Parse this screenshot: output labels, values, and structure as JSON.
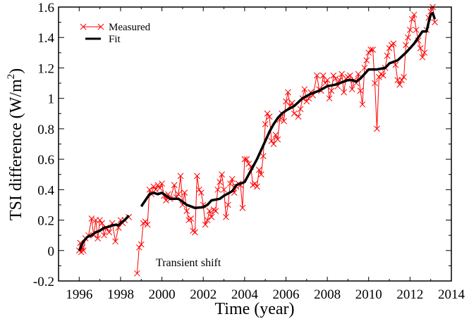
{
  "chart_data": {
    "type": "line",
    "title": "",
    "xlabel": "Time (year)",
    "ylabel": "TSI difference (W/m",
    "ylabel_sup": "2",
    "ylabel_close": ")",
    "xlim": [
      1995,
      2014
    ],
    "ylim": [
      -0.2,
      1.6
    ],
    "xticks": [
      1996,
      1998,
      2000,
      2002,
      2004,
      2006,
      2008,
      2010,
      2012,
      2014
    ],
    "xtick_labels": [
      "1996",
      "1998",
      "2000",
      "2002",
      "2004",
      "2006",
      "2008",
      "2010",
      "2012",
      "2014"
    ],
    "yticks": [
      -0.2,
      0,
      0.2,
      0.4,
      0.6,
      0.8,
      1,
      1.2,
      1.4,
      1.6
    ],
    "ytick_labels": [
      "-0.2",
      "0",
      "0.2",
      "0.4",
      "0.6",
      "0.8",
      "1",
      "1.2",
      "1.4",
      "1.6"
    ],
    "grid": false,
    "legend_position": "top-left",
    "annotations": [
      {
        "text": "Transient shift",
        "x": 2001.8,
        "y": -0.08
      }
    ],
    "series": [
      {
        "name": "Measured",
        "color": "#ff0000",
        "marker": "x",
        "segments": [
          [
            [
              1996.0,
              0.0
            ],
            [
              1996.05,
              0.05
            ],
            [
              1996.1,
              -0.01
            ],
            [
              1996.15,
              0.02
            ],
            [
              1996.2,
              0.0
            ],
            [
              1996.3,
              0.08
            ],
            [
              1996.45,
              0.1
            ],
            [
              1996.6,
              0.21
            ],
            [
              1996.7,
              0.1
            ],
            [
              1996.8,
              0.2
            ],
            [
              1996.9,
              0.08
            ],
            [
              1997.0,
              0.2
            ],
            [
              1997.1,
              0.18
            ],
            [
              1997.2,
              0.1
            ],
            [
              1997.3,
              0.15
            ],
            [
              1997.45,
              0.12
            ],
            [
              1997.6,
              0.18
            ],
            [
              1997.75,
              0.06
            ],
            [
              1997.9,
              0.15
            ],
            [
              1998.0,
              0.2
            ],
            [
              1998.1,
              0.18
            ],
            [
              1998.2,
              0.2
            ],
            [
              1998.4,
              0.22
            ]
          ],
          [
            [
              1998.8,
              -0.15
            ],
            [
              1998.9,
              0.02
            ],
            [
              1999.0,
              0.04
            ],
            [
              1999.1,
              0.18
            ],
            [
              1999.2,
              0.19
            ],
            [
              1999.3,
              0.17
            ],
            [
              1999.4,
              0.4
            ],
            [
              1999.5,
              0.37
            ],
            [
              1999.6,
              0.42
            ],
            [
              1999.7,
              0.4
            ],
            [
              1999.8,
              0.43
            ],
            [
              1999.9,
              0.41
            ],
            [
              2000.0,
              0.44
            ],
            [
              2000.1,
              0.36
            ],
            [
              2000.2,
              0.33
            ],
            [
              2000.3,
              0.37
            ],
            [
              2000.4,
              0.34
            ],
            [
              2000.6,
              0.43
            ],
            [
              2000.7,
              0.35
            ],
            [
              2000.8,
              0.37
            ],
            [
              2000.9,
              0.49
            ],
            [
              2001.0,
              0.3
            ],
            [
              2001.1,
              0.38
            ],
            [
              2001.2,
              0.26
            ],
            [
              2001.3,
              0.2
            ],
            [
              2001.4,
              0.21
            ],
            [
              2001.5,
              0.13
            ],
            [
              2001.6,
              0.12
            ],
            [
              2001.7,
              0.49
            ],
            [
              2001.8,
              0.4
            ],
            [
              2001.9,
              0.38
            ],
            [
              2002.0,
              0.3
            ],
            [
              2002.1,
              0.17
            ],
            [
              2002.2,
              0.2
            ],
            [
              2002.3,
              0.26
            ],
            [
              2002.4,
              0.22
            ],
            [
              2002.5,
              0.27
            ],
            [
              2002.6,
              0.26
            ],
            [
              2002.7,
              0.4
            ],
            [
              2002.8,
              0.45
            ],
            [
              2002.9,
              0.5
            ],
            [
              2003.0,
              0.4
            ],
            [
              2003.1,
              0.22
            ],
            [
              2003.2,
              0.3
            ],
            [
              2003.3,
              0.44
            ],
            [
              2003.4,
              0.47
            ],
            [
              2003.5,
              0.38
            ],
            [
              2003.6,
              0.42
            ],
            [
              2003.7,
              0.44
            ],
            [
              2003.8,
              0.43
            ],
            [
              2003.9,
              0.28
            ],
            [
              2004.0,
              0.6
            ],
            [
              2004.1,
              0.6
            ],
            [
              2004.2,
              0.57
            ],
            [
              2004.3,
              0.55
            ],
            [
              2004.4,
              0.43
            ],
            [
              2004.5,
              0.44
            ],
            [
              2004.6,
              0.42
            ],
            [
              2004.7,
              0.53
            ],
            [
              2004.8,
              0.5
            ],
            [
              2004.9,
              0.62
            ],
            [
              2005.0,
              0.83
            ],
            [
              2005.1,
              0.9
            ],
            [
              2005.2,
              0.88
            ],
            [
              2005.3,
              0.72
            ],
            [
              2005.4,
              0.7
            ],
            [
              2005.5,
              0.76
            ],
            [
              2005.6,
              0.73
            ],
            [
              2005.7,
              0.86
            ],
            [
              2005.8,
              0.9
            ],
            [
              2005.9,
              0.85
            ],
            [
              2006.0,
              0.98
            ],
            [
              2006.1,
              1.04
            ],
            [
              2006.2,
              0.95
            ],
            [
              2006.3,
              0.97
            ],
            [
              2006.4,
              0.9
            ],
            [
              2006.6,
              0.88
            ],
            [
              2006.7,
              0.93
            ],
            [
              2006.8,
              1.0
            ],
            [
              2006.9,
              1.06
            ],
            [
              2007.0,
              0.98
            ],
            [
              2007.1,
              1.0
            ],
            [
              2007.2,
              1.04
            ],
            [
              2007.3,
              1.02
            ],
            [
              2007.5,
              1.15
            ],
            [
              2007.6,
              1.06
            ],
            [
              2007.7,
              1.05
            ],
            [
              2007.8,
              1.15
            ],
            [
              2007.9,
              1.1
            ],
            [
              2008.0,
              1.12
            ],
            [
              2008.1,
              1.0
            ],
            [
              2008.2,
              1.05
            ],
            [
              2008.3,
              1.15
            ],
            [
              2008.4,
              1.13
            ],
            [
              2008.5,
              1.08
            ],
            [
              2008.6,
              1.12
            ],
            [
              2008.7,
              1.16
            ],
            [
              2008.8,
              1.04
            ],
            [
              2008.9,
              1.13
            ],
            [
              2009.0,
              1.14
            ],
            [
              2009.1,
              1.15
            ],
            [
              2009.2,
              1.06
            ],
            [
              2009.3,
              1.12
            ],
            [
              2009.4,
              1.1
            ],
            [
              2009.5,
              1.16
            ],
            [
              2009.6,
              1.05
            ],
            [
              2009.7,
              0.96
            ],
            [
              2009.8,
              1.2
            ],
            [
              2009.9,
              1.25
            ],
            [
              2010.0,
              1.3
            ],
            [
              2010.1,
              1.32
            ],
            [
              2010.2,
              1.32
            ],
            [
              2010.3,
              1.1
            ],
            [
              2010.4,
              0.8
            ],
            [
              2010.5,
              1.14
            ],
            [
              2010.6,
              1.16
            ],
            [
              2010.7,
              1.15
            ],
            [
              2010.8,
              1.2
            ],
            [
              2010.9,
              1.28
            ],
            [
              2011.0,
              1.33
            ],
            [
              2011.1,
              1.35
            ],
            [
              2011.2,
              1.36
            ],
            [
              2011.3,
              1.22
            ],
            [
              2011.4,
              1.12
            ],
            [
              2011.5,
              1.09
            ],
            [
              2011.6,
              1.12
            ],
            [
              2011.7,
              1.14
            ],
            [
              2011.8,
              1.35
            ],
            [
              2011.9,
              1.4
            ],
            [
              2012.0,
              1.45
            ],
            [
              2012.1,
              1.52
            ],
            [
              2012.2,
              1.55
            ],
            [
              2012.3,
              1.45
            ],
            [
              2012.4,
              1.38
            ],
            [
              2012.5,
              1.33
            ],
            [
              2012.6,
              1.27
            ],
            [
              2012.7,
              1.3
            ],
            [
              2012.8,
              1.45
            ],
            [
              2012.9,
              1.53
            ],
            [
              2013.0,
              1.57
            ],
            [
              2013.1,
              1.6
            ],
            [
              2013.2,
              1.5
            ]
          ]
        ]
      },
      {
        "name": "Fit",
        "color": "#000000",
        "marker": "none",
        "segments": [
          [
            [
              1996.0,
              0.0
            ],
            [
              1996.2,
              0.06
            ],
            [
              1996.4,
              0.09
            ],
            [
              1996.6,
              0.1
            ],
            [
              1996.8,
              0.12
            ],
            [
              1997.0,
              0.13
            ],
            [
              1997.2,
              0.15
            ],
            [
              1997.4,
              0.155
            ],
            [
              1997.6,
              0.165
            ],
            [
              1997.8,
              0.17
            ],
            [
              1997.9,
              0.165
            ],
            [
              1998.0,
              0.18
            ],
            [
              1998.2,
              0.2
            ],
            [
              1998.4,
              0.23
            ]
          ],
          [
            [
              1999.0,
              0.29
            ],
            [
              1999.2,
              0.33
            ],
            [
              1999.4,
              0.37
            ],
            [
              1999.6,
              0.38
            ],
            [
              1999.8,
              0.37
            ],
            [
              2000.0,
              0.38
            ],
            [
              2000.2,
              0.36
            ],
            [
              2000.4,
              0.34
            ],
            [
              2000.8,
              0.34
            ],
            [
              2001.0,
              0.32
            ],
            [
              2001.2,
              0.3
            ],
            [
              2001.6,
              0.28
            ],
            [
              2002.0,
              0.285
            ],
            [
              2002.2,
              0.3
            ],
            [
              2002.4,
              0.33
            ],
            [
              2002.8,
              0.34
            ],
            [
              2003.0,
              0.36
            ],
            [
              2003.4,
              0.39
            ],
            [
              2003.6,
              0.43
            ],
            [
              2003.8,
              0.44
            ],
            [
              2004.0,
              0.45
            ],
            [
              2004.2,
              0.5
            ],
            [
              2004.4,
              0.55
            ],
            [
              2004.6,
              0.6
            ],
            [
              2004.8,
              0.66
            ],
            [
              2005.0,
              0.72
            ],
            [
              2005.2,
              0.78
            ],
            [
              2005.4,
              0.83
            ],
            [
              2005.6,
              0.87
            ],
            [
              2005.8,
              0.9
            ],
            [
              2006.0,
              0.92
            ],
            [
              2006.4,
              0.95
            ],
            [
              2006.8,
              1.0
            ],
            [
              2007.2,
              1.03
            ],
            [
              2007.6,
              1.05
            ],
            [
              2008.0,
              1.08
            ],
            [
              2008.4,
              1.09
            ],
            [
              2008.8,
              1.11
            ],
            [
              2009.0,
              1.12
            ],
            [
              2009.2,
              1.12
            ],
            [
              2009.4,
              1.11
            ],
            [
              2009.6,
              1.13
            ],
            [
              2009.8,
              1.16
            ],
            [
              2010.0,
              1.19
            ],
            [
              2010.4,
              1.19
            ],
            [
              2010.8,
              1.2
            ],
            [
              2011.0,
              1.23
            ],
            [
              2011.4,
              1.25
            ],
            [
              2011.8,
              1.3
            ],
            [
              2012.0,
              1.33
            ],
            [
              2012.2,
              1.36
            ],
            [
              2012.4,
              1.4
            ],
            [
              2012.6,
              1.44
            ],
            [
              2012.8,
              1.44
            ],
            [
              2012.9,
              1.5
            ],
            [
              2013.0,
              1.55
            ],
            [
              2013.1,
              1.56
            ],
            [
              2013.2,
              1.52
            ]
          ]
        ]
      }
    ]
  }
}
